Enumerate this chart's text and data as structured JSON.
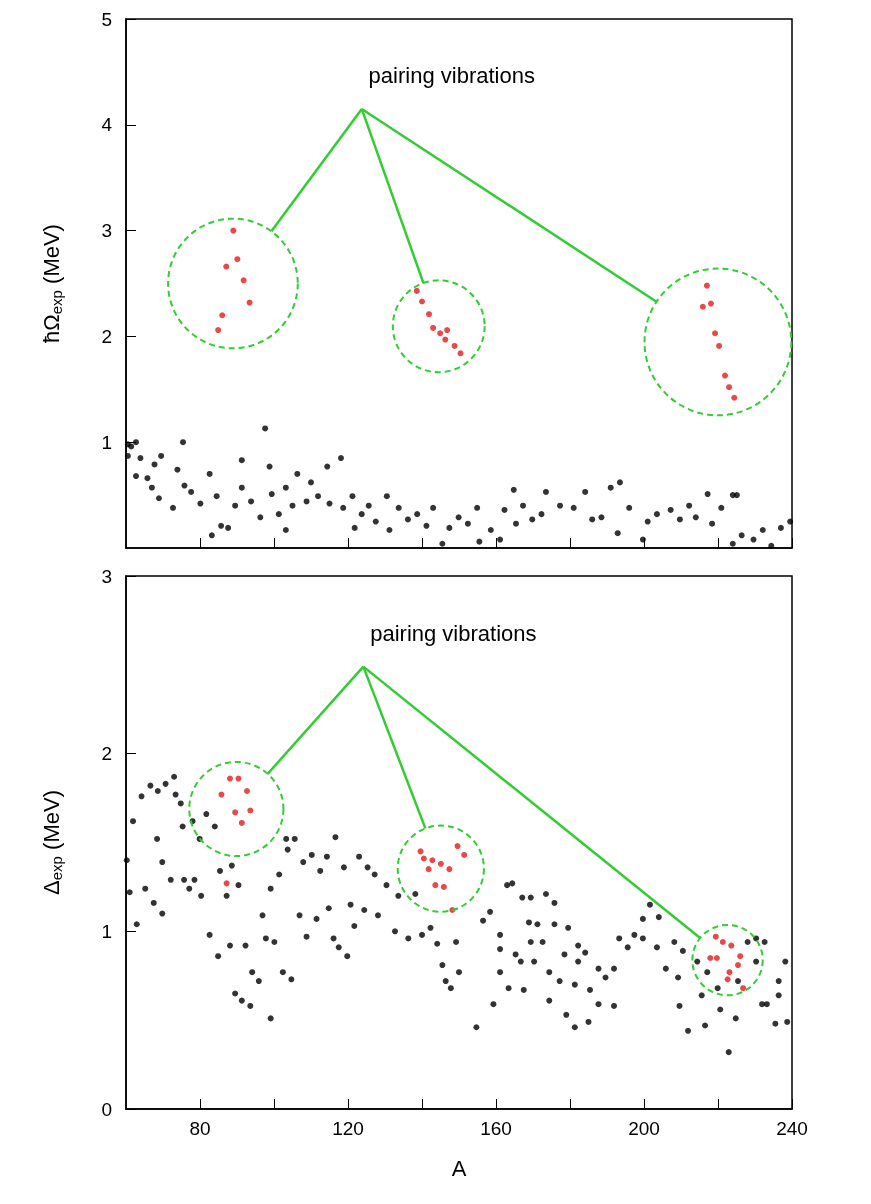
{
  "chart_data": [
    {
      "type": "scatter",
      "ylabel": "ħΩ$_{exp}$ (MeV)",
      "xlim": [
        60,
        240
      ],
      "ylim": [
        0,
        5
      ],
      "xticks": [
        80,
        {
          "value": 100,
          "label": null
        },
        120,
        {
          "value": 140,
          "label": null
        },
        160,
        {
          "value": 180,
          "label": null
        },
        200,
        {
          "value": 220,
          "label": null
        },
        240
      ],
      "yticks": [
        1,
        2,
        3,
        4,
        5
      ],
      "tick_labels": "y",
      "grid": false,
      "marker": "circle",
      "annotations": [
        "pairing vibrations"
      ],
      "series": [
        {
          "color": "#000000",
          "x": [
            60.5,
            61.4,
            60.5,
            62.7,
            63.9,
            62.7,
            65.8,
            67.0,
            68.9,
            69.5,
            67.7,
            72.7,
            73.9,
            75.4,
            75.8,
            77.6,
            80.1,
            82.6,
            83.2,
            84.5,
            85.7,
            87.6,
            89.5,
            91.3,
            91.3,
            93.8,
            96.3,
            97.6,
            98.8,
            99.4,
            101.3,
            103.2,
            103.2,
            105.0,
            106.3,
            108.8,
            110.0,
            111.9,
            114.4,
            115.0,
            118.1,
            118.7,
            121.2,
            121.8,
            123.7,
            125.6,
            127.5,
            130.5,
            131.2,
            133.7,
            136.2,
            138.7,
            141.2,
            143.0,
            145.5,
            147.4,
            149.9,
            152.4,
            154.9,
            155.5,
            158.6,
            161.1,
            162.3,
            164.8,
            165.4,
            167.3,
            169.8,
            172.3,
            173.5,
            177.3,
            181.0,
            184.1,
            186.0,
            188.5,
            191.0,
            193.5,
            192.9,
            196.0,
            199.7,
            201.0,
            203.5,
            207.2,
            209.7,
            212.2,
            214.0,
            217.2,
            218.4,
            220.9,
            224.0,
            225.1,
            224.0,
            226.4,
            229.6,
            232.1,
            234.4,
            237.0,
            239.5
          ],
          "values": [
            0.98,
            0.96,
            0.87,
            1.0,
            0.85,
            0.68,
            0.66,
            0.57,
            0.47,
            0.87,
            0.79,
            0.38,
            0.74,
            1.0,
            0.59,
            0.53,
            0.42,
            0.7,
            0.12,
            0.49,
            0.21,
            0.19,
            0.4,
            0.83,
            0.57,
            0.44,
            0.29,
            1.13,
            0.77,
            0.51,
            0.32,
            0.17,
            0.57,
            0.4,
            0.7,
            0.44,
            0.62,
            0.49,
            0.77,
            0.42,
            0.85,
            0.38,
            0.49,
            0.19,
            0.32,
            0.4,
            0.25,
            0.49,
            0.17,
            0.38,
            0.27,
            0.32,
            0.21,
            0.38,
            0.04,
            0.19,
            0.29,
            0.23,
            0.38,
            0.06,
            0.17,
            0.08,
            0.36,
            0.55,
            0.23,
            0.4,
            0.27,
            0.32,
            0.53,
            0.4,
            0.38,
            0.53,
            0.27,
            0.29,
            0.57,
            0.62,
            0.14,
            0.38,
            0.08,
            0.25,
            0.32,
            0.36,
            0.27,
            0.4,
            0.29,
            0.51,
            0.23,
            0.38,
            0.5,
            0.5,
            0.04,
            0.12,
            0.08,
            0.17,
            0.02,
            0.19,
            0.25
          ]
        },
        {
          "color": "#e41a1c",
          "x": [
            89.0,
            87.1,
            90.1,
            91.8,
            93.4,
            86.0,
            84.9
          ],
          "values": [
            3.0,
            2.66,
            2.73,
            2.53,
            2.32,
            2.2,
            2.06
          ]
        },
        {
          "color": "#e41a1c",
          "x": [
            138.6,
            140.0,
            141.9,
            143.0,
            144.9,
            146.8,
            146.3,
            148.8,
            150.4
          ],
          "values": [
            2.43,
            2.33,
            2.21,
            2.08,
            2.03,
            2.06,
            1.97,
            1.91,
            1.84
          ]
        },
        {
          "color": "#e41a1c",
          "x": [
            217.0,
            215.9,
            218.1,
            219.2,
            220.3,
            221.9,
            223.0,
            224.4
          ],
          "values": [
            2.48,
            2.28,
            2.31,
            2.03,
            1.91,
            1.63,
            1.52,
            1.42
          ]
        }
      ]
    },
    {
      "type": "scatter",
      "xlabel": "A",
      "ylabel": "Δ$_{exp}$ (MeV)",
      "xlim": [
        60,
        240
      ],
      "ylim": [
        0,
        3
      ],
      "xticks": [
        80,
        {
          "value": 100,
          "label": null
        },
        120,
        {
          "value": 140,
          "label": null
        },
        160,
        {
          "value": 180,
          "label": null
        },
        200,
        {
          "value": 220,
          "label": null
        },
        240
      ],
      "yticks": [
        0,
        1,
        2,
        3
      ],
      "grid": false,
      "marker": "circle",
      "annotations": [
        "pairing vibrations"
      ],
      "series": [
        {
          "color": "#000000",
          "x": [
            60.2,
            61.9,
            61.0,
            62.9,
            64.2,
            65.2,
            66.6,
            67.5,
            68.6,
            68.4,
            69.8,
            69.8,
            70.7,
            72.1,
            73.0,
            73.4,
            74.8,
            75.3,
            75.7,
            77.1,
            78.0,
            78.5,
            79.9,
            80.3,
            81.7,
            82.6,
            84.0,
            84.9,
            85.4,
            87.2,
            88.1,
            88.6,
            89.5,
            90.4,
            91.3,
            92.3,
            93.6,
            94.1,
            95.9,
            96.9,
            97.8,
            99.1,
            99.1,
            100.1,
            101.4,
            102.4,
            103.3,
            103.7,
            104.7,
            105.6,
            106.9,
            107.9,
            108.8,
            110.2,
            111.5,
            112.5,
            114.3,
            114.8,
            116.1,
            116.6,
            117.5,
            118.9,
            119.8,
            120.7,
            121.7,
            123.0,
            124.4,
            125.3,
            127.2,
            128.1,
            130.4,
            132.7,
            133.6,
            136.3,
            138.2,
            140.0,
            142.3,
            144.1,
            145.5,
            146.4,
            149.2,
            150.0,
            147.8,
            163.0,
            164.4,
            158.4,
            156.5,
            161.1,
            167.1,
            169.4,
            173.5,
            175.8,
            168.9,
            171.2,
            175.8,
            179.5,
            161.1,
            165.3,
            169.4,
            172.6,
            166.7,
            170.3,
            174.4,
            178.5,
            182.2,
            184.1,
            182.2,
            161.1,
            163.4,
            167.5,
            174.4,
            177.2,
            181.3,
            185.4,
            187.7,
            189.6,
            191.9,
            193.3,
            187.7,
            191.9,
            185.0,
            181.3,
            179.0,
            154.7,
            159.3,
            195.6,
            197.4,
            199.7,
            201.6,
            199.7,
            204.0,
            203.5,
            205.9,
            208.2,
            210.5,
            209.2,
            209.6,
            211.9,
            216.5,
            215.6,
            220.6,
            222.9,
            224.8,
            228.0,
            230.3,
            232.6,
            230.3,
            231.9,
            233.2,
            235.5,
            238.7,
            236.4,
            238.2,
            236.4,
            225.4,
            219.9,
            217.1,
            214.4
          ],
          "values": [
            1.4,
            1.62,
            1.22,
            1.04,
            1.76,
            1.24,
            1.82,
            1.16,
            1.79,
            1.52,
            1.1,
            1.39,
            1.83,
            1.29,
            1.87,
            1.77,
            1.72,
            1.59,
            1.29,
            1.24,
            1.62,
            1.29,
            1.52,
            1.2,
            1.66,
            0.98,
            1.59,
            0.86,
            1.34,
            1.2,
            0.92,
            1.37,
            0.65,
            1.26,
            0.61,
            0.92,
            0.58,
            0.77,
            0.72,
            1.09,
            0.96,
            0.51,
            1.24,
            0.94,
            1.32,
            0.77,
            1.52,
            1.46,
            0.73,
            1.52,
            1.09,
            1.39,
            0.97,
            1.43,
            1.07,
            1.34,
            1.42,
            1.13,
            0.96,
            1.53,
            0.91,
            1.36,
            0.86,
            1.15,
            1.03,
            1.42,
            1.12,
            1.36,
            1.32,
            1.09,
            1.26,
            1.0,
            1.2,
            0.96,
            1.21,
            0.98,
            1.02,
            0.93,
            0.81,
            0.72,
            0.94,
            0.77,
            0.68,
            1.26,
            1.27,
            1.11,
            1.06,
            0.98,
            1.19,
            1.19,
            1.21,
            1.16,
            1.05,
            1.04,
            1.04,
            1.02,
            0.9,
            0.87,
            0.94,
            0.94,
            0.83,
            0.83,
            0.77,
            0.87,
            0.92,
            0.88,
            0.83,
            0.77,
            0.68,
            0.67,
            0.61,
            0.72,
            0.7,
            0.67,
            0.79,
            0.74,
            0.79,
            0.96,
            0.59,
            0.58,
            0.49,
            0.46,
            0.53,
            0.46,
            0.59,
            0.91,
            0.98,
            0.96,
            1.15,
            1.07,
            1.08,
            0.91,
            0.79,
            0.94,
            0.89,
            0.74,
            0.58,
            0.44,
            0.47,
            0.64,
            0.56,
            0.32,
            0.51,
            0.94,
            0.96,
            0.94,
            0.83,
            0.59,
            0.59,
            0.48,
            0.49,
            0.72,
            0.83,
            0.64,
            0.72,
            0.68,
            0.77,
            0.83
          ]
        },
        {
          "color": "#e41a1c",
          "x": [
            88.1,
            90.4,
            85.8,
            92.7,
            89.5,
            93.6,
            91.3,
            87.2
          ],
          "values": [
            1.86,
            1.86,
            1.77,
            1.79,
            1.67,
            1.68,
            1.61,
            1.27
          ]
        },
        {
          "color": "#e41a1c",
          "x": [
            139.6,
            140.5,
            142.8,
            145.1,
            147.4,
            141.8,
            143.6,
            145.9,
            148.2,
            149.6,
            151.4
          ],
          "values": [
            1.45,
            1.41,
            1.4,
            1.38,
            1.35,
            1.35,
            1.26,
            1.25,
            1.12,
            1.48,
            1.43
          ]
        },
        {
          "color": "#e41a1c",
          "x": [
            219.4,
            221.3,
            223.6,
            217.9,
            219.7,
            226.0,
            225.4,
            223.1,
            222.6,
            226.8
          ],
          "values": [
            0.97,
            0.94,
            0.92,
            0.85,
            0.85,
            0.86,
            0.81,
            0.77,
            0.73,
            0.68
          ]
        }
      ]
    }
  ]
}
